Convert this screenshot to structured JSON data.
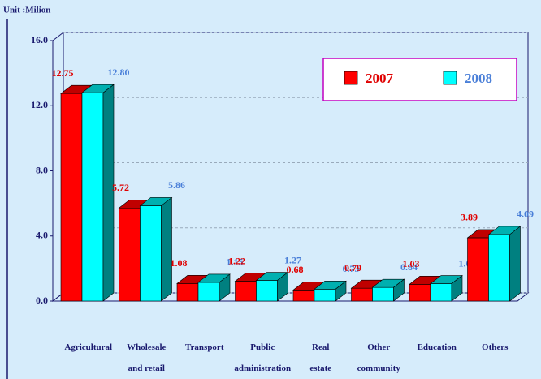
{
  "chart_data": {
    "type": "bar3d",
    "unit_label": "Unit :Milion",
    "categories": [
      "Agricultural",
      "Wholesale\nand retail",
      "Transport",
      "Public\nadministration",
      "Real\nestate",
      "Other\ncommunity",
      "Education",
      "Others"
    ],
    "series": [
      {
        "name": "2007",
        "color": "#ff0000",
        "side_color": "#800000",
        "top_color": "#c00000",
        "label_color": "#e00000",
        "values": [
          12.75,
          5.72,
          1.08,
          1.22,
          0.68,
          0.79,
          1.03,
          3.89
        ],
        "value_labels": [
          "12.75",
          "5.72",
          "1.08",
          "1.22",
          "0.68",
          "0.79",
          "1.03",
          "3.89"
        ]
      },
      {
        "name": "2008",
        "color": "#00ffff",
        "side_color": "#008080",
        "top_color": "#00b0b0",
        "label_color": "#4a7fd8",
        "values": [
          12.8,
          5.86,
          1.15,
          1.27,
          0.73,
          0.84,
          1.07,
          4.09
        ],
        "value_labels": [
          "12.80",
          "5.86",
          "1.15",
          "1.27",
          "0.73",
          "0.84",
          "1.07",
          "4.09"
        ]
      }
    ],
    "ylim": [
      0,
      16
    ],
    "yticks": [
      {
        "value": 0,
        "label": "0.0"
      },
      {
        "value": 4,
        "label": "4.0"
      },
      {
        "value": 8,
        "label": "8.0"
      },
      {
        "value": 12,
        "label": "12.0"
      },
      {
        "value": 16,
        "label": "16.0"
      }
    ],
    "grid": true,
    "legend": "top-right"
  }
}
